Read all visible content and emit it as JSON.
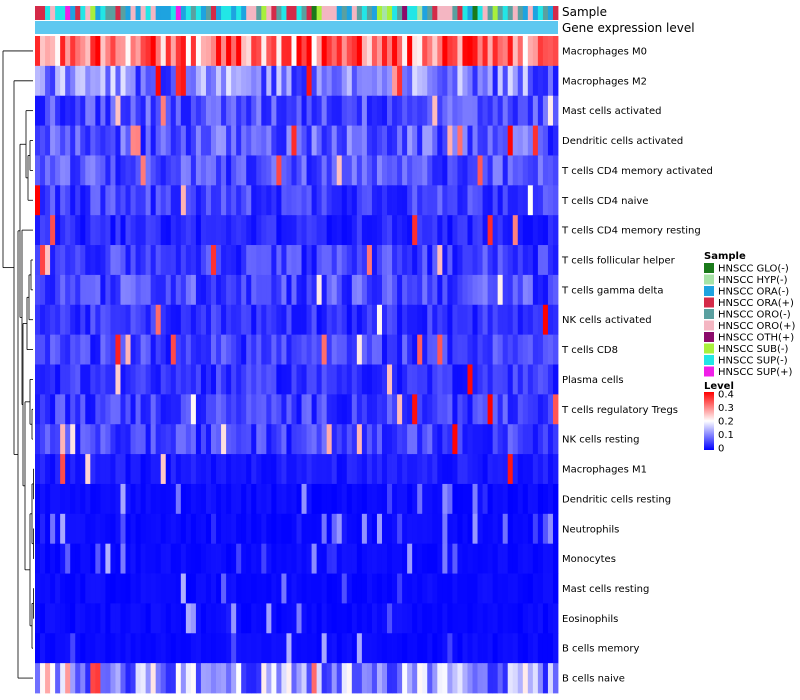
{
  "chart_data": {
    "type": "heatmap",
    "title": "",
    "annotation_rows": [
      "Sample",
      "Gene expression level"
    ],
    "rows": [
      "Macrophages M0",
      "Macrophages M2",
      "Mast cells activated",
      "Dendritic cells activated",
      "T cells CD4 memory activated",
      "T cells CD4 naive",
      "T cells CD4 memory resting",
      "T cells follicular helper",
      "T cells gamma delta",
      "NK cells activated",
      "T cells CD8",
      "Plasma cells",
      "T cells regulatory  Tregs",
      "NK cells resting",
      "Macrophages M1",
      "Dendritic cells resting",
      "Neutrophils",
      "Monocytes",
      "Mast cells resting",
      "Eosinophils",
      "B cells memory",
      "B cells naive"
    ],
    "row_typical_level": [
      0.32,
      0.1,
      0.06,
      0.07,
      0.06,
      0.05,
      0.03,
      0.05,
      0.06,
      0.04,
      0.05,
      0.04,
      0.05,
      0.05,
      0.02,
      0.01,
      0.01,
      0.01,
      0.01,
      0.01,
      0.01,
      0.12
    ],
    "n_samples": 104,
    "sample_legend": {
      "title": "Sample",
      "items": [
        {
          "label": "HNSCC GLO(-)",
          "color": "#1a7a1a"
        },
        {
          "label": "HNSCC HYP(-)",
          "color": "#a6e3a6"
        },
        {
          "label": "HNSCC ORA(-)",
          "color": "#1ea3e0"
        },
        {
          "label": "HNSCC ORA(+)",
          "color": "#d42a48"
        },
        {
          "label": "HNSCC ORO(-)",
          "color": "#5aa0a0"
        },
        {
          "label": "HNSCC ORO(+)",
          "color": "#f4b6c2"
        },
        {
          "label": "HNSCC OTH(+)",
          "color": "#8b0a6a"
        },
        {
          "label": "HNSCC SUB(-)",
          "color": "#a8f03c"
        },
        {
          "label": "HNSCC SUP(-)",
          "color": "#22e6e6"
        },
        {
          "label": "HNSCC SUP(+)",
          "color": "#f01ee8"
        }
      ]
    },
    "level_legend": {
      "title": "Level",
      "ticks": [
        "0.4",
        "0.3",
        "0.2",
        "0.1",
        "0"
      ],
      "range": [
        0,
        0.4
      ],
      "low_color": "#0000ff",
      "mid_color": "#ffffff",
      "high_color": "#ff0000"
    },
    "gene_expression_bar_color": "#5ec8f0"
  }
}
